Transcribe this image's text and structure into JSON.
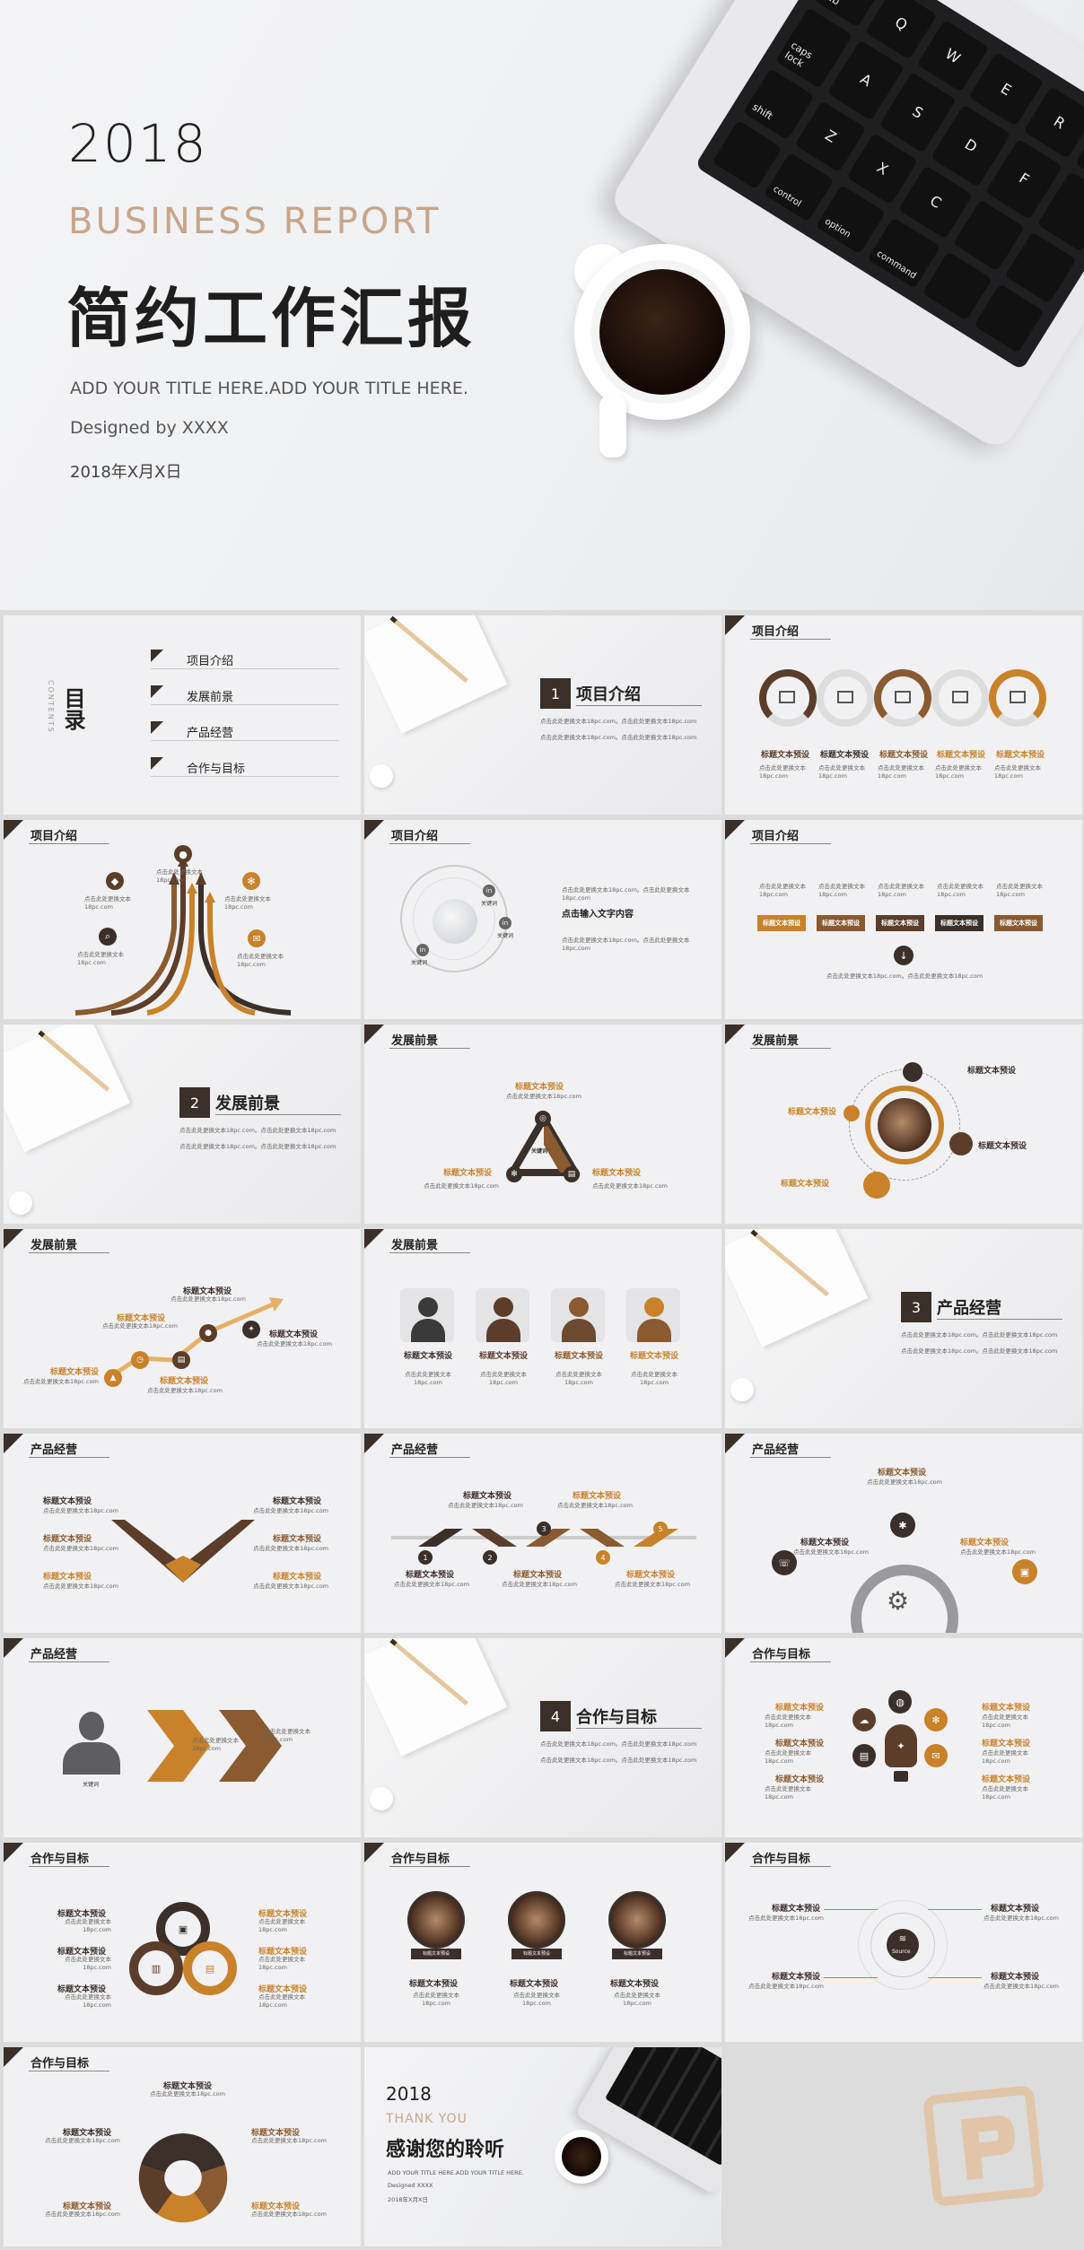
{
  "cover": {
    "year": "2018",
    "subtitle_en": "BUSINESS REPORT",
    "title_cn": "简约工作汇报",
    "tagline": "ADD YOUR TITLE HERE.ADD YOUR TITLE HERE.",
    "designer": "Designed by XXXX",
    "date": "2018年X月X日",
    "keys": [
      "tab",
      "caps lock",
      "shift",
      "control",
      "option",
      "command",
      "Q",
      "W",
      "E",
      "R",
      "A",
      "S",
      "D",
      "F",
      "Z",
      "X",
      "C"
    ]
  },
  "toc": {
    "title": "目录",
    "title_en": "CONTENTS",
    "items": [
      "项目介绍",
      "发展前景",
      "产品经营",
      "合作与目标"
    ]
  },
  "sections": [
    {
      "num": "1",
      "title": "项目介绍"
    },
    {
      "num": "2",
      "title": "发展前景"
    },
    {
      "num": "3",
      "title": "产品经营"
    },
    {
      "num": "4",
      "title": "合作与目标"
    }
  ],
  "placeholder": {
    "label": "标题文本预设",
    "body": "点击此处更换文本18pc.com。点击此处更换文本18pc.com",
    "short": "点击此处更换文本18pc.com",
    "input": "点击输入文字内容",
    "keyword": "关键词",
    "source": "Source"
  },
  "ending": {
    "year": "2018",
    "thanks_en": "THANK YOU",
    "thanks_cn": "感谢您的聆听",
    "tagline": "ADD YOUR TITLE HERE.ADD YOUR TITLE HERE.",
    "designer": "Designed XXXX",
    "date": "2018年X月X日"
  },
  "colors": {
    "brown": "#5b3d2a",
    "gold": "#c9822a",
    "dark": "#3b2f2a",
    "bg": "#f1f1f3"
  }
}
